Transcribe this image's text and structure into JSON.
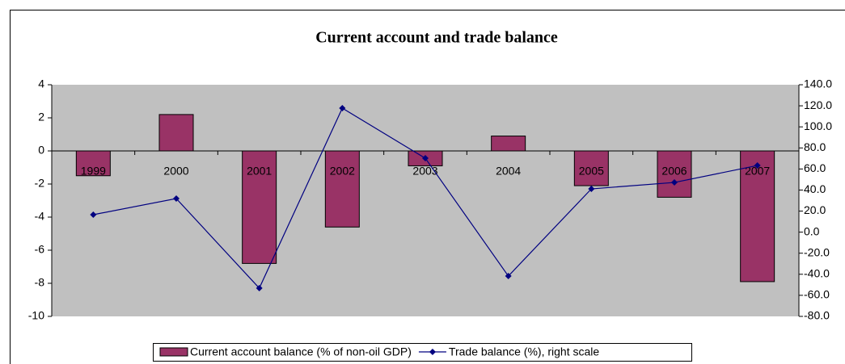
{
  "chart_data": {
    "type": "bar",
    "title": "Current account and trade balance",
    "categories": [
      "1999",
      "2000",
      "2001",
      "2002",
      "2003",
      "2004",
      "2005",
      "2006",
      "2007"
    ],
    "series": [
      {
        "name": "Current account balance (% of non-oil GDP)",
        "type": "bar",
        "color": "#993366",
        "values": [
          -1.5,
          2.2,
          -6.8,
          -4.6,
          -0.9,
          0.9,
          -2.1,
          -2.8,
          -7.9
        ]
      },
      {
        "name": "Trade balance (%), right scale",
        "type": "line",
        "axis": "y2",
        "color": "#000080",
        "values": [
          16.6,
          31.9,
          -53.2,
          117.8,
          70.2,
          -41.7,
          41.1,
          47.2,
          63.3
        ]
      }
    ],
    "ylim": [
      -10,
      4
    ],
    "yticks": [
      -10,
      -8,
      -6,
      -4,
      -2,
      0,
      2,
      4
    ],
    "y2lim": [
      -80,
      140
    ],
    "y2ticks": [
      {
        "value": -80,
        "label": "-80.0"
      },
      {
        "value": -60,
        "label": "-60.0"
      },
      {
        "value": -40,
        "label": "-40.0"
      },
      {
        "value": -20,
        "label": "-20.0"
      },
      {
        "value": 0,
        "label": "0.0"
      },
      {
        "value": 20,
        "label": "20.0"
      },
      {
        "value": 40,
        "label": "40.0"
      },
      {
        "value": 60,
        "label": "60.0"
      },
      {
        "value": 80,
        "label": "80.0"
      },
      {
        "value": 100,
        "label": "100.0"
      },
      {
        "value": 120,
        "label": "120.0"
      },
      {
        "value": 140,
        "label": "140.0"
      }
    ],
    "plot_background": "#c0c0c0",
    "legend": "bottom"
  }
}
